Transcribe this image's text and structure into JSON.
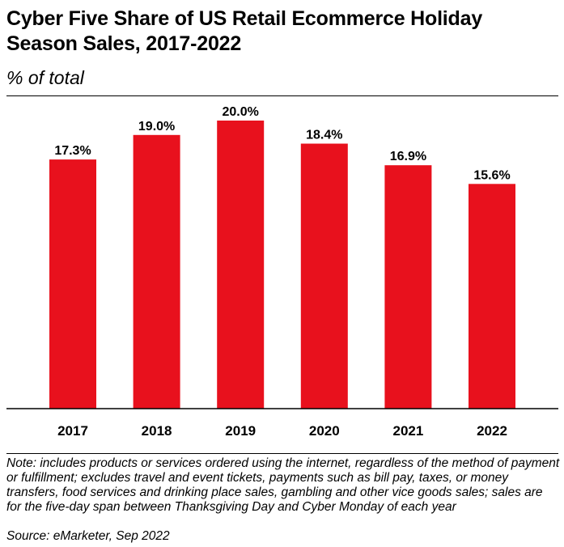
{
  "title": "Cyber Five Share of US Retail Ecommerce Holiday Season Sales, 2017-2022",
  "subtitle": "% of total",
  "note": "Note: includes products or services ordered using the internet, regardless of the method of payment or fulfillment; excludes travel and event tickets, payments such as bill pay, taxes, or money transfers, food services and drinking place sales, gambling and other vice goods sales; sales are for the five-day span between Thanksgiving Day and Cyber Monday of each year",
  "source": "Source: eMarketer, Sep 2022",
  "colors": {
    "bar": "#e8111d",
    "text": "#000000",
    "axis": "#000000"
  },
  "chart_data": {
    "type": "bar",
    "title": "Cyber Five Share of US Retail Ecommerce Holiday Season Sales, 2017-2022",
    "subtitle": "% of total",
    "xlabel": "",
    "ylabel": "",
    "categories": [
      "2017",
      "2018",
      "2019",
      "2020",
      "2021",
      "2022"
    ],
    "values": [
      17.3,
      19.0,
      20.0,
      18.4,
      16.9,
      15.6
    ],
    "data_labels": [
      "17.3%",
      "19.0%",
      "20.0%",
      "18.4%",
      "16.9%",
      "15.6%"
    ],
    "ylim": [
      0,
      20
    ],
    "grid": false,
    "legend": "none"
  }
}
